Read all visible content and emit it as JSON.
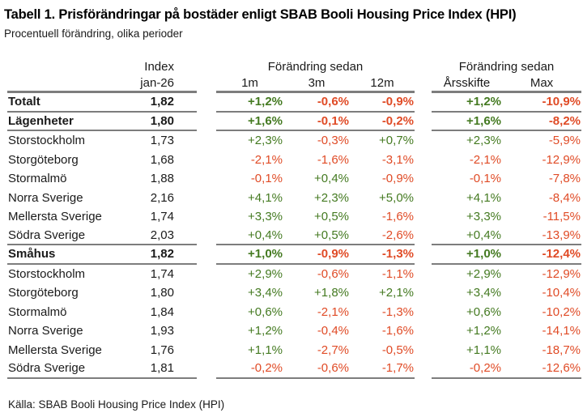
{
  "chart_data": {
    "type": "table",
    "title": "Tabell 1. Prisförändringar på bostäder enligt SBAB Booli Housing Price Index (HPI)",
    "subtitle": "Procentuell förändring, olika perioder",
    "source": "Källa: SBAB Booli Housing Price Index (HPI)",
    "header": {
      "index_title": "Index",
      "index_period": "jan-26",
      "change_group_1": {
        "label": "Förändring sedan",
        "columns": [
          "1m",
          "3m",
          "12m"
        ]
      },
      "change_group_2": {
        "label": "Förändring sedan",
        "columns": [
          "Årsskifte",
          "Max"
        ]
      }
    },
    "rows": [
      {
        "label": "Totalt",
        "bold": true,
        "rule_below": true,
        "index": "1,82",
        "m1": "+1,2%",
        "m3": "-0,6%",
        "m12": "-0,9%",
        "ytd": "+1,2%",
        "max": "-10,9%"
      },
      {
        "label": "Lägenheter",
        "bold": true,
        "rule_below": true,
        "index": "1,80",
        "m1": "+1,6%",
        "m3": "-0,1%",
        "m12": "-0,2%",
        "ytd": "+1,6%",
        "max": "-8,2%"
      },
      {
        "label": "Storstockholm",
        "bold": false,
        "rule_below": false,
        "index": "1,73",
        "m1": "+2,3%",
        "m3": "-0,3%",
        "m12": "+0,7%",
        "ytd": "+2,3%",
        "max": "-5,9%"
      },
      {
        "label": "Storgöteborg",
        "bold": false,
        "rule_below": false,
        "index": "1,68",
        "m1": "-2,1%",
        "m3": "-1,6%",
        "m12": "-3,1%",
        "ytd": "-2,1%",
        "max": "-12,9%"
      },
      {
        "label": "Stormalmö",
        "bold": false,
        "rule_below": false,
        "index": "1,88",
        "m1": "-0,1%",
        "m3": "+0,4%",
        "m12": "-0,9%",
        "ytd": "-0,1%",
        "max": "-7,8%"
      },
      {
        "label": "Norra Sverige",
        "bold": false,
        "rule_below": false,
        "index": "2,16",
        "m1": "+4,1%",
        "m3": "+2,3%",
        "m12": "+5,0%",
        "ytd": "+4,1%",
        "max": "-8,4%"
      },
      {
        "label": "Mellersta Sverige",
        "bold": false,
        "rule_below": false,
        "index": "1,74",
        "m1": "+3,3%",
        "m3": "+0,5%",
        "m12": "-1,6%",
        "ytd": "+3,3%",
        "max": "-11,5%"
      },
      {
        "label": "Södra Sverige",
        "bold": false,
        "rule_below": true,
        "index": "2,03",
        "m1": "+0,4%",
        "m3": "+0,5%",
        "m12": "-2,6%",
        "ytd": "+0,4%",
        "max": "-13,9%"
      },
      {
        "label": "Småhus",
        "bold": true,
        "rule_below": true,
        "index": "1,82",
        "m1": "+1,0%",
        "m3": "-0,9%",
        "m12": "-1,3%",
        "ytd": "+1,0%",
        "max": "-12,4%"
      },
      {
        "label": "Storstockholm",
        "bold": false,
        "rule_below": false,
        "index": "1,74",
        "m1": "+2,9%",
        "m3": "-0,6%",
        "m12": "-1,1%",
        "ytd": "+2,9%",
        "max": "-12,9%"
      },
      {
        "label": "Storgöteborg",
        "bold": false,
        "rule_below": false,
        "index": "1,80",
        "m1": "+3,4%",
        "m3": "+1,8%",
        "m12": "+2,1%",
        "ytd": "+3,4%",
        "max": "-10,4%"
      },
      {
        "label": "Stormalmö",
        "bold": false,
        "rule_below": false,
        "index": "1,84",
        "m1": "+0,6%",
        "m3": "-2,1%",
        "m12": "-1,3%",
        "ytd": "+0,6%",
        "max": "-10,2%"
      },
      {
        "label": "Norra Sverige",
        "bold": false,
        "rule_below": false,
        "index": "1,93",
        "m1": "+1,2%",
        "m3": "-0,4%",
        "m12": "-1,6%",
        "ytd": "+1,2%",
        "max": "-14,1%"
      },
      {
        "label": "Mellersta Sverige",
        "bold": false,
        "rule_below": false,
        "index": "1,76",
        "m1": "+1,1%",
        "m3": "-2,7%",
        "m12": "-0,5%",
        "ytd": "+1,1%",
        "max": "-18,7%"
      },
      {
        "label": "Södra Sverige",
        "bold": false,
        "rule_below": true,
        "index": "1,81",
        "m1": "-0,2%",
        "m3": "-0,6%",
        "m12": "-1,7%",
        "ytd": "-0,2%",
        "max": "-12,6%"
      }
    ]
  },
  "colors": {
    "positive": "#447a21",
    "negative": "#e04b26",
    "rule": "#7d7d7d",
    "text": "#1a1a1a"
  }
}
